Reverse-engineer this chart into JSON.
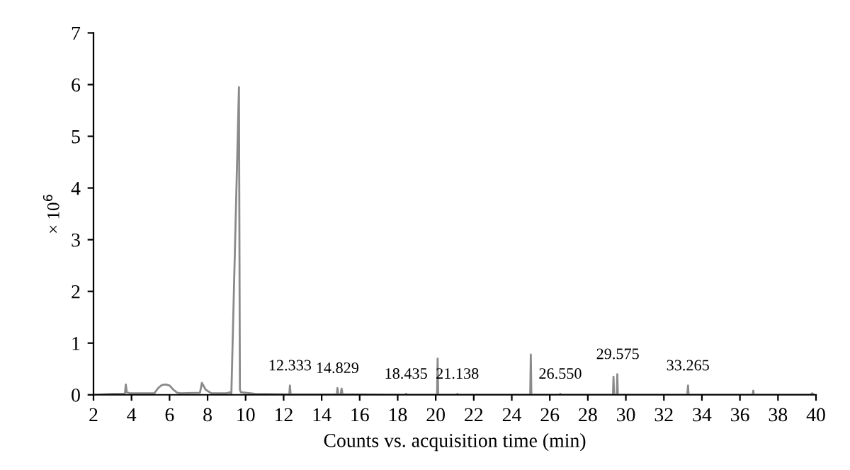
{
  "chart_data": {
    "type": "line",
    "xlabel": "Counts vs. acquisition time (min)",
    "ylabel": "× 10$^{6}$",
    "xlim": [
      2,
      40
    ],
    "ylim": [
      0,
      7
    ],
    "xticks": [
      2,
      4,
      6,
      8,
      10,
      12,
      14,
      16,
      18,
      20,
      22,
      24,
      26,
      28,
      30,
      32,
      34,
      36,
      38,
      40
    ],
    "yticks": [
      0,
      1,
      2,
      3,
      4,
      5,
      6,
      7
    ],
    "grid": false,
    "legend": false,
    "marker": "none",
    "line_style": "solid",
    "series": [
      {
        "color": "#8a8a8a",
        "x": [
          2.0,
          3.0,
          3.65,
          3.7,
          3.75,
          3.9,
          5.2,
          5.4,
          5.6,
          5.8,
          6.0,
          6.2,
          6.4,
          6.6,
          7.6,
          7.7,
          7.9,
          8.2,
          9.0,
          9.2,
          9.25,
          9.65,
          9.7,
          9.75,
          10.5,
          12.3,
          12.33,
          12.37,
          14.8,
          14.83,
          14.87,
          15.0,
          15.05,
          15.1,
          18.4,
          18.44,
          18.5,
          20.07,
          20.1,
          20.13,
          21.1,
          21.14,
          21.2,
          24.97,
          25.0,
          25.03,
          26.5,
          26.55,
          26.6,
          29.32,
          29.35,
          29.38,
          29.52,
          29.55,
          29.58,
          33.23,
          33.27,
          33.3,
          36.67,
          36.7,
          36.73,
          39.7,
          39.8,
          39.9
        ],
        "values": [
          0.0,
          0.02,
          0.02,
          0.2,
          0.05,
          0.03,
          0.03,
          0.13,
          0.19,
          0.2,
          0.18,
          0.1,
          0.04,
          0.03,
          0.04,
          0.23,
          0.1,
          0.03,
          0.03,
          0.05,
          0.0,
          5.95,
          0.1,
          0.05,
          0.02,
          0.01,
          0.18,
          0.01,
          0.01,
          0.13,
          0.01,
          0.01,
          0.12,
          0.01,
          0.0,
          0.02,
          0.0,
          0.0,
          0.7,
          0.0,
          0.0,
          0.02,
          0.0,
          0.0,
          0.78,
          0.0,
          0.0,
          0.02,
          0.0,
          0.0,
          0.35,
          0.0,
          0.0,
          0.4,
          0.0,
          0.0,
          0.18,
          0.0,
          0.0,
          0.08,
          0.0,
          0.0,
          0.03,
          0.0
        ]
      }
    ],
    "annotations": [
      {
        "text": "12.333",
        "x": 12.333,
        "y": 0.18
      },
      {
        "text": "14.829",
        "x": 14.829,
        "y": 0.13
      },
      {
        "text": "18.435",
        "x": 18.435,
        "y": 0.02
      },
      {
        "text": "21.138",
        "x": 21.138,
        "y": 0.02
      },
      {
        "text": "26.550",
        "x": 26.55,
        "y": 0.02
      },
      {
        "text": "29.575",
        "x": 29.575,
        "y": 0.4
      },
      {
        "text": "33.265",
        "x": 33.265,
        "y": 0.18
      }
    ]
  }
}
